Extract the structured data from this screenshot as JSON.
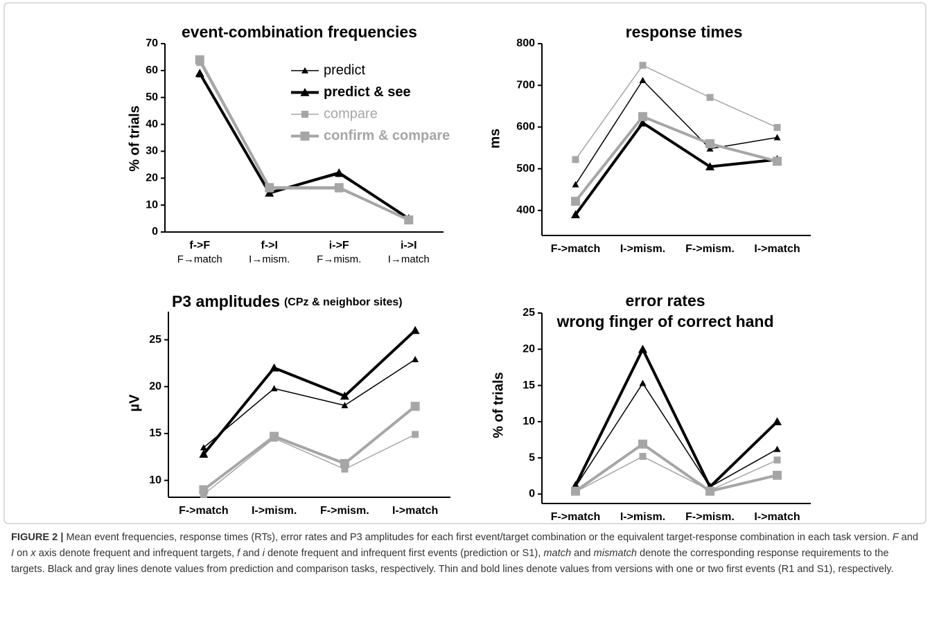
{
  "chart_data": [
    {
      "type": "line",
      "title": "event-combination frequencies",
      "ylabel": "% of trials",
      "categories": [
        "f->F",
        "f->I",
        "i->F",
        "i->I"
      ],
      "sublabels": [
        "F→match",
        "I→mism.",
        "F→mism.",
        "I→match"
      ],
      "ylim": [
        0,
        70
      ],
      "yticks": [
        0,
        10,
        20,
        30,
        40,
        50,
        60,
        70
      ],
      "legend": "top-right",
      "series": [
        {
          "name": "predict",
          "color": "#000000",
          "width": 1.5,
          "marker": "triangle",
          "values": [
            58.5,
            14.5,
            21.5,
            5
          ]
        },
        {
          "name": "predict & see",
          "color": "#000000",
          "width": 4,
          "marker": "triangle",
          "values": [
            59,
            14.5,
            22,
            5
          ]
        },
        {
          "name": "compare",
          "color": "#a6a6a6",
          "width": 1.5,
          "marker": "square",
          "values": [
            63,
            16,
            16,
            4.5
          ]
        },
        {
          "name": "confirm & compare",
          "color": "#a6a6a6",
          "width": 4,
          "marker": "square",
          "values": [
            64,
            16.5,
            16.5,
            4.5
          ]
        }
      ]
    },
    {
      "type": "line",
      "title": "response times",
      "ylabel": "ms",
      "categories": [
        "F->match",
        "I->mism.",
        "F->mism.",
        "I->match"
      ],
      "ylim": [
        340,
        800
      ],
      "yticks": [
        400,
        500,
        600,
        700,
        800
      ],
      "series": [
        {
          "color": "#000000",
          "width": 1.5,
          "marker": "triangle",
          "values": [
            462,
            712,
            548,
            575
          ]
        },
        {
          "color": "#000000",
          "width": 4,
          "marker": "triangle",
          "values": [
            390,
            610,
            505,
            522
          ]
        },
        {
          "color": "#a6a6a6",
          "width": 1.5,
          "marker": "square",
          "values": [
            522,
            748,
            671,
            599
          ]
        },
        {
          "color": "#a6a6a6",
          "width": 4,
          "marker": "square",
          "values": [
            422,
            625,
            560,
            518
          ]
        }
      ]
    },
    {
      "type": "line",
      "title": "P3 amplitudes",
      "title_note": "(CPz & neighbor sites)",
      "ylabel": "µV",
      "categories": [
        "F->match",
        "I->mism.",
        "F->mism.",
        "I->match"
      ],
      "ylim": [
        8.2,
        28
      ],
      "yticks": [
        10,
        15,
        20,
        25
      ],
      "series": [
        {
          "color": "#000000",
          "width": 1.5,
          "marker": "triangle",
          "values": [
            13.5,
            19.8,
            18,
            22.9
          ]
        },
        {
          "color": "#000000",
          "width": 4,
          "marker": "triangle",
          "values": [
            12.8,
            22,
            19,
            26
          ]
        },
        {
          "color": "#a6a6a6",
          "width": 1.5,
          "marker": "square",
          "values": [
            8.5,
            14.5,
            11.2,
            14.9
          ]
        },
        {
          "color": "#a6a6a6",
          "width": 4,
          "marker": "square",
          "values": [
            9,
            14.7,
            11.8,
            17.9
          ]
        }
      ]
    },
    {
      "type": "line",
      "title": "error rates",
      "title_line2": "wrong finger of correct hand",
      "ylabel": "% of trials",
      "categories": [
        "F->match",
        "I->mism.",
        "F->mism.",
        "I->match"
      ],
      "ylim": [
        -1.3,
        25
      ],
      "yticks": [
        0,
        5,
        10,
        15,
        20,
        25
      ],
      "series": [
        {
          "color": "#000000",
          "width": 1.5,
          "marker": "triangle",
          "values": [
            1,
            15.3,
            1,
            6.2
          ]
        },
        {
          "color": "#000000",
          "width": 4,
          "marker": "triangle",
          "values": [
            1.2,
            20,
            1,
            10
          ]
        },
        {
          "color": "#a6a6a6",
          "width": 1.5,
          "marker": "square",
          "values": [
            0.3,
            5.2,
            0.5,
            4.7
          ]
        },
        {
          "color": "#a6a6a6",
          "width": 4,
          "marker": "square",
          "values": [
            0.4,
            6.9,
            0.4,
            2.6
          ]
        }
      ]
    }
  ],
  "caption": {
    "label": "FIGURE 2 |",
    "runs": [
      {
        "text": " Mean event frequencies, response times (RTs), error rates and P3 amplitudes for each first event/target combination or the equivalent target-response combination in each task version. "
      },
      {
        "text": "F",
        "italic": true
      },
      {
        "text": " and "
      },
      {
        "text": "I",
        "italic": true
      },
      {
        "text": " on "
      },
      {
        "text": "x",
        "italic": true
      },
      {
        "text": " axis denote frequent and infrequent targets, "
      },
      {
        "text": "f",
        "italic": true
      },
      {
        "text": " and "
      },
      {
        "text": "i",
        "italic": true
      },
      {
        "text": " denote frequent and infrequent first events (prediction or S1), "
      },
      {
        "text": "match",
        "italic": true
      },
      {
        "text": " and "
      },
      {
        "text": "mismatch",
        "italic": true
      },
      {
        "text": " denote the corresponding response requirements to the targets. Black and gray lines denote values from prediction and comparison tasks, respectively. Thin and bold lines denote values from versions with one or two first events (R1 and S1), respectively."
      }
    ]
  }
}
